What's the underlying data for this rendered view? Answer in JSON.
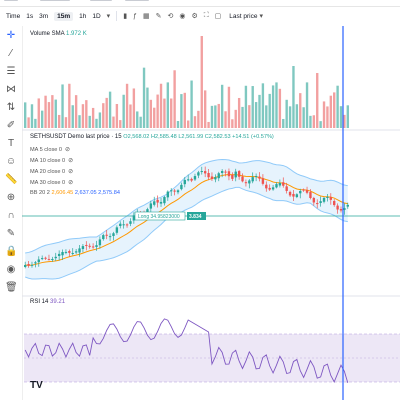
{
  "toolbar": {
    "items": [
      "Time",
      "1s",
      "3m",
      "15m",
      "1h",
      "1D"
    ],
    "active": "15m",
    "dropdown_icon": "chevron-down-icon",
    "price_mode": "Last price",
    "price_mode_icon": "chevron-down-icon"
  },
  "left_toolbar_icons": [
    "crosshair-icon",
    "horizontal-lines-icon",
    "fib-icon",
    "pattern-icon",
    "forecast-icon",
    "brush-icon",
    "text-icon",
    "emoji-icon",
    "ruler-icon",
    "zoom-in-icon",
    "magnet-icon",
    "lock-drawing-icon",
    "lock-icon",
    "eye-icon",
    "trash-icon"
  ],
  "volume": {
    "label": "Volume SMA",
    "value": "1.972 K"
  },
  "main": {
    "symbol": "SETHSUSDT Demo last price · 15",
    "ohlc": "O2,568.02 H2,585.48 L2,561.99 C2,582.53 +14.51 (+0.57%)",
    "ma_rows": [
      {
        "label": "MA 5 close 0"
      },
      {
        "label": "MA 10 close 0"
      },
      {
        "label": "MA 20 close 0"
      },
      {
        "label": "MA 30 close 0"
      }
    ],
    "bb_label": "BB 20 2",
    "bb_mid": "2,606.45",
    "bb_up": "2,637.05",
    "bb_low": "2,575.84",
    "position_label": "Long 34.95823000",
    "position_badge": "3.834"
  },
  "rsi": {
    "label": "RSI 14",
    "value": "39.21"
  },
  "logo": "TV",
  "colors": {
    "up": "#26a69a",
    "down": "#ef5350",
    "vol_up": "#7fc8c0",
    "vol_down": "#f2a0a0",
    "band": "#90caf9",
    "band_fill": "#e3f2fd",
    "ma": "#ff9800",
    "position_line": "#26a69a",
    "crosshair": "#2962ff",
    "rsi_line": "#7e57c2",
    "rsi_band": "#ede7f6"
  }
}
